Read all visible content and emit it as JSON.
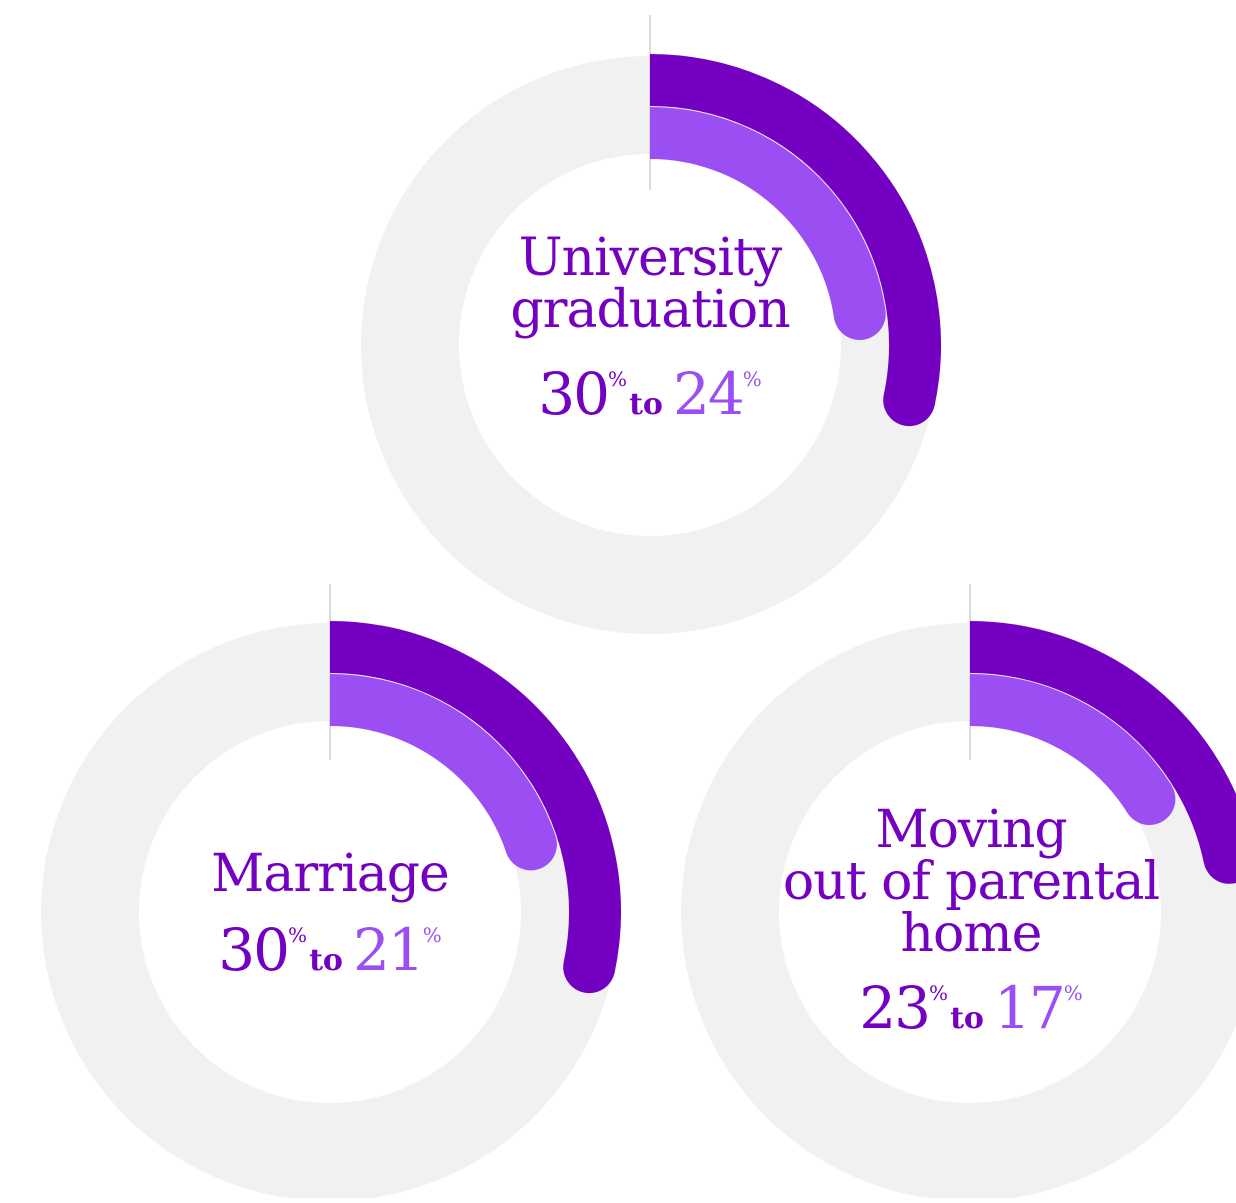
{
  "colors": {
    "track": "#f1f1f1",
    "from_arc": "#7400c2",
    "to_arc": "#9b4ff3",
    "from_text": "#7400c2",
    "to_text": "#9b4ff3",
    "divider": "#cfcfcf"
  },
  "chart_data": {
    "type": "radial-bar",
    "unit": "%",
    "connector_word": "to",
    "series": [
      {
        "values_from": 30,
        "values_to": 24,
        "category": "University graduation"
      },
      {
        "values_from": 30,
        "values_to": 21,
        "category": "Marriage"
      },
      {
        "values_from": 23,
        "values_to": 17,
        "category": "Moving out of parental home"
      }
    ],
    "charts": [
      {
        "title_lines": [
          "University",
          "graduation"
        ],
        "from": 30,
        "to": 24,
        "from_text": "30",
        "to_text": "24",
        "pct": "%",
        "connector": "to"
      },
      {
        "title_lines": [
          "Marriage"
        ],
        "from": 30,
        "to": 21,
        "from_text": "30",
        "to_text": "21",
        "pct": "%",
        "connector": "to"
      },
      {
        "title_lines": [
          "Moving",
          "out of parental",
          "home"
        ],
        "from": 23,
        "to": 17,
        "from_text": "23",
        "to_text": "17",
        "pct": "%",
        "connector": "to"
      }
    ]
  }
}
